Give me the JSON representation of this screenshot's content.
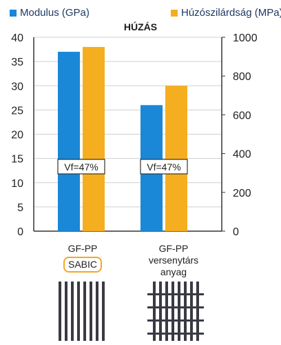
{
  "chart_data": {
    "type": "bar",
    "title": "HÚZÁS",
    "categories": [
      "GF-PP",
      "GF-PP"
    ],
    "category_sublabels": [
      "SABIC",
      "versenytárs\nanyag"
    ],
    "series": [
      {
        "name": "Modulus (GPa)",
        "axis": "left",
        "values": [
          37,
          26
        ],
        "color": "#1a87d7"
      },
      {
        "name": "Húzószilárdság (MPa)",
        "axis": "right",
        "values": [
          950,
          750
        ],
        "color": "#f5ae20"
      }
    ],
    "left_axis": {
      "ylim": [
        0,
        40
      ],
      "ticks": [
        0,
        5,
        10,
        15,
        20,
        25,
        30,
        35,
        40
      ]
    },
    "right_axis": {
      "ylim": [
        0,
        1000
      ],
      "ticks": [
        0,
        200,
        400,
        600,
        800,
        1000
      ]
    },
    "annotations": [
      "Vf=47%",
      "Vf=47%"
    ],
    "legend_position": "top",
    "grid": "horizontal"
  }
}
